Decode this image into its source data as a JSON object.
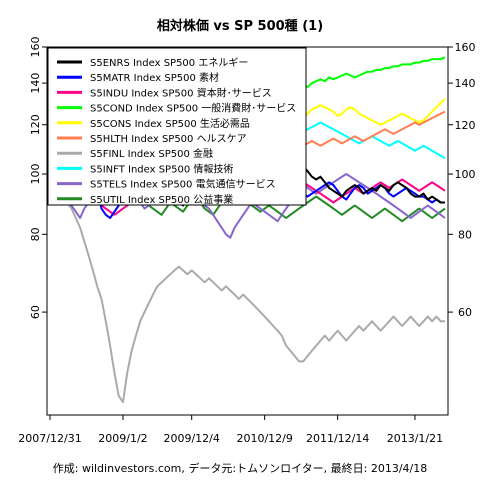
{
  "chart_data": {
    "type": "line",
    "title": "相対株価 vs SP 500種 (1)",
    "caption": "作成: wildinvestors.com, データ元:トムソンロイター, 最終日: 2013/4/18",
    "xlabel": "",
    "ylabel": "",
    "log_scale_y": true,
    "ylim": [
      41,
      160
    ],
    "y_ticks": [
      60,
      80,
      100,
      120,
      140,
      160
    ],
    "x_tick_labels": [
      "2007/12/31",
      "2009/1/2",
      "2009/12/4",
      "2010/12/9",
      "2011/12/14",
      "2013/1/21"
    ],
    "x_tick_index": [
      0,
      17,
      33,
      50,
      67,
      85
    ],
    "x_count": 93,
    "grid": false,
    "legend_position": "top-left",
    "series": [
      {
        "name": "S5ENRS Index SP500 エネルギー",
        "color": "#000000",
        "values": [
          100,
          103,
          104,
          108,
          111,
          112,
          104,
          102,
          98,
          94,
          91,
          95,
          98,
          96,
          94,
          97,
          92,
          95,
          98,
          97,
          98,
          99,
          97,
          94,
          93,
          95,
          97,
          96,
          94,
          92,
          90,
          89,
          92,
          94,
          92,
          91,
          92,
          93,
          96,
          97,
          95,
          94,
          96,
          98,
          99,
          101,
          102,
          103,
          101,
          100,
          102,
          99,
          98,
          100,
          101,
          100,
          97,
          98,
          101,
          103,
          101,
          99,
          98,
          99,
          97,
          95,
          94,
          93,
          92,
          94,
          95,
          96,
          95,
          93,
          94,
          95,
          94,
          96,
          95,
          94,
          96,
          97,
          96,
          95,
          93,
          92,
          92,
          93,
          91,
          92,
          91,
          90,
          90
        ]
      },
      {
        "name": "S5MATR Index SP500 素材",
        "color": "#0000ff",
        "values": [
          100,
          101,
          103,
          105,
          107,
          106,
          104,
          102,
          100,
          99,
          97,
          94,
          88,
          86,
          85,
          87,
          89,
          93,
          99,
          101,
          103,
          100,
          98,
          100,
          101,
          102,
          104,
          103,
          100,
          99,
          101,
          103,
          105,
          104,
          102,
          101,
          103,
          105,
          107,
          106,
          103,
          101,
          100,
          99,
          98,
          100,
          99,
          97,
          96,
          97,
          98,
          97,
          98,
          99,
          97,
          96,
          95,
          96,
          95,
          93,
          92,
          93,
          94,
          95,
          96,
          97,
          96,
          94,
          92,
          91,
          93,
          95,
          96,
          95,
          93,
          94,
          95,
          96,
          95,
          93,
          92,
          93,
          94,
          95,
          94,
          93,
          92,
          92,
          91,
          90,
          91,
          90,
          90
        ]
      },
      {
        "name": "S5INDU Index SP500 資本財･サービス",
        "color": "#ff0088",
        "values": [
          100,
          101,
          100,
          99,
          98,
          96,
          95,
          94,
          93,
          92,
          91,
          90,
          89,
          88,
          87,
          86,
          87,
          88,
          89,
          90,
          91,
          92,
          94,
          95,
          96,
          97,
          96,
          95,
          96,
          98,
          99,
          100,
          101,
          102,
          100,
          98,
          99,
          101,
          102,
          103,
          102,
          101,
          100,
          99,
          98,
          97,
          96,
          95,
          96,
          97,
          98,
          99,
          98,
          97,
          96,
          95,
          94,
          95,
          96,
          97,
          96,
          95,
          94,
          93,
          92,
          91,
          90,
          91,
          92,
          93,
          94,
          95,
          94,
          93,
          94,
          95,
          96,
          97,
          96,
          95,
          96,
          97,
          98,
          97,
          96,
          95,
          94,
          95,
          96,
          97,
          96,
          95,
          94
        ]
      },
      {
        "name": "S5COND Index SP500 一般消費財･サービス",
        "color": "#00ff00",
        "values": [
          100,
          96,
          94,
          95,
          97,
          95,
          94,
          93,
          95,
          97,
          99,
          101,
          103,
          105,
          104,
          106,
          108,
          110,
          112,
          113,
          114,
          116,
          117,
          118,
          119,
          120,
          121,
          122,
          123,
          124,
          125,
          126,
          127,
          126,
          128,
          129,
          130,
          131,
          130,
          129,
          131,
          133,
          134,
          135,
          136,
          135,
          134,
          133,
          136,
          138,
          140,
          139,
          138,
          137,
          136,
          138,
          139,
          140,
          141,
          139,
          138,
          140,
          141,
          142,
          141,
          143,
          142,
          143,
          144,
          145,
          144,
          143,
          144,
          145,
          146,
          146,
          147,
          147,
          148,
          148,
          149,
          149,
          150,
          150,
          150,
          151,
          151,
          152,
          152,
          153,
          153,
          153,
          154
        ]
      },
      {
        "name": "S5CONS Index SP500 生活必需品",
        "color": "#ffff00",
        "values": [
          100,
          103,
          105,
          107,
          106,
          105,
          108,
          112,
          115,
          118,
          120,
          122,
          121,
          119,
          117,
          118,
          116,
          114,
          113,
          114,
          112,
          111,
          110,
          109,
          108,
          110,
          111,
          113,
          114,
          113,
          112,
          113,
          114,
          115,
          116,
          115,
          114,
          115,
          116,
          117,
          118,
          119,
          120,
          121,
          120,
          119,
          118,
          117,
          116,
          117,
          118,
          119,
          118,
          117,
          116,
          118,
          120,
          122,
          124,
          123,
          125,
          127,
          128,
          129,
          128,
          127,
          126,
          124,
          125,
          127,
          128,
          127,
          125,
          124,
          123,
          122,
          121,
          120,
          121,
          122,
          123,
          124,
          125,
          124,
          123,
          122,
          121,
          122,
          124,
          126,
          128,
          130,
          132
        ]
      },
      {
        "name": "S5HLTH Index SP500 ヘルスケア",
        "color": "#ff7f50",
        "values": [
          100,
          101,
          102,
          103,
          102,
          104,
          106,
          108,
          110,
          109,
          108,
          107,
          106,
          105,
          107,
          109,
          108,
          107,
          106,
          105,
          104,
          103,
          102,
          101,
          100,
          99,
          100,
          101,
          100,
          99,
          98,
          99,
          100,
          101,
          102,
          101,
          100,
          99,
          98,
          99,
          100,
          101,
          102,
          103,
          104,
          105,
          106,
          107,
          106,
          105,
          106,
          107,
          108,
          109,
          110,
          111,
          110,
          109,
          110,
          111,
          112,
          113,
          112,
          111,
          112,
          113,
          114,
          113,
          112,
          113,
          114,
          115,
          114,
          113,
          114,
          115,
          116,
          117,
          118,
          117,
          116,
          117,
          118,
          119,
          120,
          121,
          120,
          121,
          122,
          123,
          124,
          125,
          126
        ]
      },
      {
        "name": "S5FINL Index SP500 金融",
        "color": "#aaaaaa",
        "values": [
          100,
          98,
          95,
          92,
          90,
          88,
          85,
          82,
          78,
          74,
          70,
          66,
          63,
          58,
          53,
          48,
          44,
          43,
          48,
          52,
          55,
          58,
          60,
          62,
          64,
          66,
          67,
          68,
          69,
          70,
          71,
          70,
          69,
          70,
          69,
          68,
          67,
          68,
          67,
          66,
          65,
          66,
          65,
          64,
          63,
          64,
          63,
          62,
          61,
          60,
          59,
          58,
          57,
          56,
          55,
          53,
          52,
          51,
          50,
          50,
          51,
          52,
          53,
          54,
          55,
          54,
          55,
          56,
          55,
          54,
          55,
          56,
          57,
          56,
          57,
          58,
          57,
          56,
          57,
          58,
          59,
          58,
          57,
          58,
          59,
          58,
          57,
          58,
          59,
          58,
          59,
          58,
          58
        ]
      },
      {
        "name": "S5INFT Index SP500 情報技術",
        "color": "#00ffff",
        "values": [
          100,
          98,
          97,
          96,
          95,
          96,
          97,
          98,
          99,
          100,
          101,
          103,
          105,
          107,
          108,
          110,
          112,
          114,
          116,
          117,
          118,
          119,
          120,
          119,
          118,
          117,
          116,
          115,
          114,
          115,
          116,
          117,
          116,
          115,
          116,
          117,
          118,
          119,
          118,
          117,
          116,
          117,
          118,
          119,
          120,
          121,
          122,
          121,
          120,
          119,
          118,
          119,
          120,
          121,
          122,
          121,
          120,
          119,
          118,
          117,
          118,
          119,
          120,
          121,
          120,
          119,
          118,
          117,
          116,
          115,
          114,
          113,
          112,
          113,
          114,
          115,
          114,
          113,
          112,
          111,
          112,
          113,
          112,
          111,
          110,
          109,
          110,
          111,
          110,
          109,
          108,
          107,
          106
        ]
      },
      {
        "name": "S5TELS Index SP500 電気通信サービス",
        "color": "#8866cc",
        "values": [
          100,
          97,
          95,
          93,
          91,
          89,
          87,
          85,
          88,
          90,
          92,
          94,
          95,
          96,
          98,
          99,
          100,
          98,
          96,
          94,
          92,
          90,
          88,
          89,
          90,
          91,
          92,
          93,
          94,
          95,
          96,
          97,
          96,
          95,
          93,
          91,
          89,
          88,
          86,
          84,
          82,
          80,
          79,
          82,
          84,
          86,
          88,
          90,
          89,
          88,
          87,
          86,
          85,
          84,
          86,
          88,
          90,
          92,
          94,
          96,
          95,
          94,
          93,
          94,
          95,
          96,
          97,
          98,
          99,
          100,
          99,
          98,
          97,
          96,
          95,
          94,
          93,
          92,
          91,
          90,
          89,
          88,
          87,
          86,
          85,
          86,
          87,
          88,
          89,
          88,
          87,
          86,
          85
        ]
      },
      {
        "name": "S5UTIL Index SP500 公益事業",
        "color": "#228b22",
        "values": [
          100,
          102,
          104,
          105,
          103,
          101,
          99,
          97,
          96,
          98,
          100,
          99,
          97,
          95,
          96,
          94,
          92,
          93,
          95,
          96,
          94,
          92,
          91,
          89,
          88,
          87,
          86,
          88,
          90,
          89,
          88,
          87,
          89,
          91,
          92,
          90,
          88,
          87,
          86,
          88,
          90,
          92,
          94,
          93,
          92,
          91,
          90,
          89,
          88,
          87,
          88,
          89,
          88,
          87,
          86,
          85,
          86,
          87,
          88,
          89,
          90,
          91,
          92,
          91,
          90,
          89,
          88,
          87,
          86,
          87,
          88,
          89,
          88,
          87,
          86,
          85,
          86,
          87,
          88,
          87,
          86,
          85,
          84,
          85,
          86,
          87,
          88,
          87,
          86,
          85,
          86,
          87,
          88
        ]
      }
    ]
  }
}
